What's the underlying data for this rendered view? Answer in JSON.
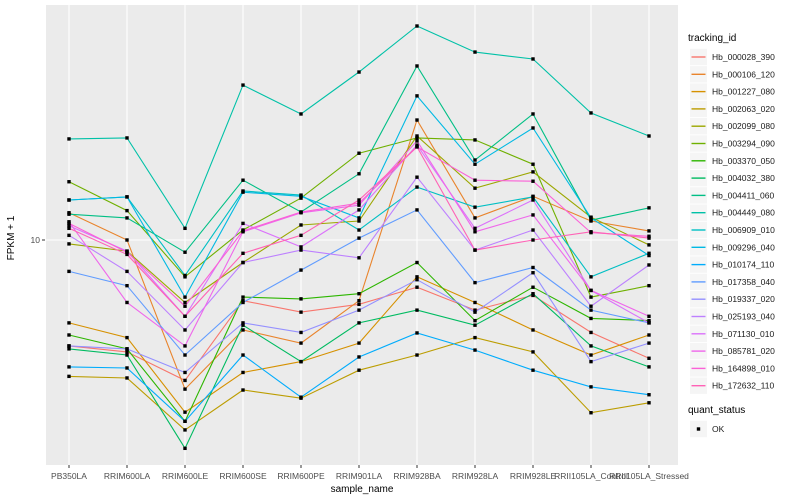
{
  "figure": {
    "panel_bg": "#EBEBEB",
    "grid_color": "#FFFFFF",
    "tick_color": "#333333",
    "tick_label_color": "#4D4D4D",
    "title_color": "#000000",
    "point_color": "#000000"
  },
  "x_axis": {
    "title": "sample_name",
    "tick_labels": [
      "PB350LA",
      "RRIM600LA",
      "RRIM600LE",
      "RRIM600SE",
      "RRIM600PE",
      "RRIM901LA",
      "RRIM928BA",
      "RRIM928LA",
      "RRIM928LE",
      "RRII105LA_Control",
      "RRII105LA_Stressed"
    ]
  },
  "y_axis": {
    "title": "FPKM + 1",
    "scale": "log10",
    "tick_labels": [
      "10"
    ],
    "tick_values": [
      10
    ]
  },
  "legend": {
    "tracking_title": "tracking_id",
    "quant_title": "quant_status",
    "quant_items": [
      {
        "label": "OK",
        "marker": "black-square"
      }
    ]
  },
  "chart_data": {
    "type": "line",
    "title": "",
    "xlabel": "sample_name",
    "ylabel": "FPKM + 1",
    "y_scale": "log10",
    "ylim": [
      0.95,
      115
    ],
    "grid": true,
    "legend_position": "right",
    "point_marker": "square",
    "categories": [
      "PB350LA",
      "RRIM600LA",
      "RRIM600LE",
      "RRIM600SE",
      "RRIM600PE",
      "RRIM901LA",
      "RRIM928BA",
      "RRIM928LA",
      "RRIM928LE",
      "RRII105LA_Control",
      "RRII105LA_Stressed"
    ],
    "series": [
      {
        "name": "Hb_000028_390",
        "color": "#F8766D",
        "values": [
          3.3,
          3.1,
          2.3,
          5.3,
          4.7,
          5.1,
          6.1,
          4.8,
          5.6,
          3.8,
          2.9
        ]
      },
      {
        "name": "Hb_000106_120",
        "color": "#E9842C",
        "values": [
          13.3,
          10.0,
          2.1,
          3.9,
          3.4,
          5.3,
          35.1,
          12.6,
          15.8,
          12.2,
          11.0
        ]
      },
      {
        "name": "Hb_001227_080",
        "color": "#D69100",
        "values": [
          4.2,
          3.6,
          1.65,
          2.5,
          2.8,
          3.4,
          6.8,
          5.2,
          3.9,
          3.0,
          3.7
        ]
      },
      {
        "name": "Hb_002063_020",
        "color": "#BC9D00",
        "values": [
          2.4,
          2.36,
          1.37,
          2.08,
          1.91,
          2.56,
          3.0,
          3.6,
          3.1,
          1.64,
          1.82
        ]
      },
      {
        "name": "Hb_002099_080",
        "color": "#9CA700",
        "values": [
          9.6,
          8.9,
          5.2,
          7.9,
          11.7,
          12.2,
          29.7,
          17.2,
          20.4,
          12.7,
          9.5
        ]
      },
      {
        "name": "Hb_003294_090",
        "color": "#6FB000",
        "values": [
          18.4,
          13.6,
          6.8,
          11.1,
          15.5,
          24.8,
          29.1,
          28.5,
          22.1,
          5.5,
          6.2
        ]
      },
      {
        "name": "Hb_003370_050",
        "color": "#2DB600",
        "values": [
          3.7,
          3.2,
          1.5,
          5.5,
          5.4,
          5.7,
          7.9,
          4.3,
          6.1,
          4.4,
          4.3
        ]
      },
      {
        "name": "Hb_004032_380",
        "color": "#00BB61",
        "values": [
          3.2,
          3.0,
          1.13,
          4.1,
          2.8,
          4.2,
          4.8,
          4.1,
          5.7,
          3.3,
          2.65
        ]
      },
      {
        "name": "Hb_004411_060",
        "color": "#00BF85",
        "values": [
          13.1,
          12.6,
          8.8,
          18.7,
          13.4,
          20.0,
          61.8,
          23.1,
          37.4,
          12.3,
          14.0
        ]
      },
      {
        "name": "Hb_004449_080",
        "color": "#00C1A7",
        "values": [
          28.8,
          29.1,
          11.3,
          50.6,
          37.4,
          58.0,
          93.9,
          71.5,
          66.5,
          37.8,
          29.7
        ]
      },
      {
        "name": "Hb_006909_010",
        "color": "#00BFC4",
        "values": [
          15.2,
          15.7,
          6.9,
          16.7,
          16.0,
          11.1,
          17.4,
          14.1,
          15.7,
          6.8,
          8.7
        ]
      },
      {
        "name": "Hb_009296_040",
        "color": "#00B9E3",
        "values": [
          15.2,
          15.7,
          5.5,
          16.5,
          15.8,
          12.6,
          45.2,
          22.1,
          32.3,
          12.6,
          8.5
        ]
      },
      {
        "name": "Hb_010174_110",
        "color": "#00ACFC",
        "values": [
          2.65,
          2.62,
          1.5,
          3.0,
          1.93,
          2.94,
          3.78,
          3.16,
          2.56,
          2.15,
          1.98
        ]
      },
      {
        "name": "Hb_017358_040",
        "color": "#619CFF",
        "values": [
          7.2,
          6.2,
          3.0,
          5.2,
          7.3,
          10.2,
          13.7,
          6.4,
          7.5,
          4.8,
          4.2
        ]
      },
      {
        "name": "Hb_019337_020",
        "color": "#9590FF",
        "values": [
          3.3,
          3.2,
          2.5,
          4.2,
          3.8,
          4.8,
          6.6,
          4.7,
          7.1,
          2.8,
          3.4
        ]
      },
      {
        "name": "Hb_025193_040",
        "color": "#BD80FF",
        "values": [
          10.5,
          7.2,
          3.9,
          7.9,
          9.0,
          8.3,
          19.3,
          9.0,
          11.1,
          5.0,
          7.7
        ]
      },
      {
        "name": "Hb_071130_010",
        "color": "#DB72FB",
        "values": [
          11.6,
          8.9,
          4.5,
          11.9,
          9.3,
          13.7,
          27.0,
          11.3,
          15.2,
          5.9,
          4.2
        ]
      },
      {
        "name": "Hb_085781_020",
        "color": "#EF67EB",
        "values": [
          12.1,
          5.2,
          3.3,
          10.9,
          13.3,
          14.4,
          28.2,
          10.9,
          13.0,
          5.9,
          4.5
        ]
      },
      {
        "name": "Hb_164898_010",
        "color": "#FB61D7",
        "values": [
          11.9,
          8.8,
          5.0,
          11.0,
          13.4,
          14.7,
          26.5,
          18.7,
          18.5,
          10.8,
          10.4
        ]
      },
      {
        "name": "Hb_172632_110",
        "color": "#FF62B6",
        "values": [
          11.3,
          8.6,
          4.5,
          8.7,
          10.5,
          15.2,
          26.5,
          9.0,
          10.0,
          10.9,
          10.2
        ]
      }
    ]
  }
}
